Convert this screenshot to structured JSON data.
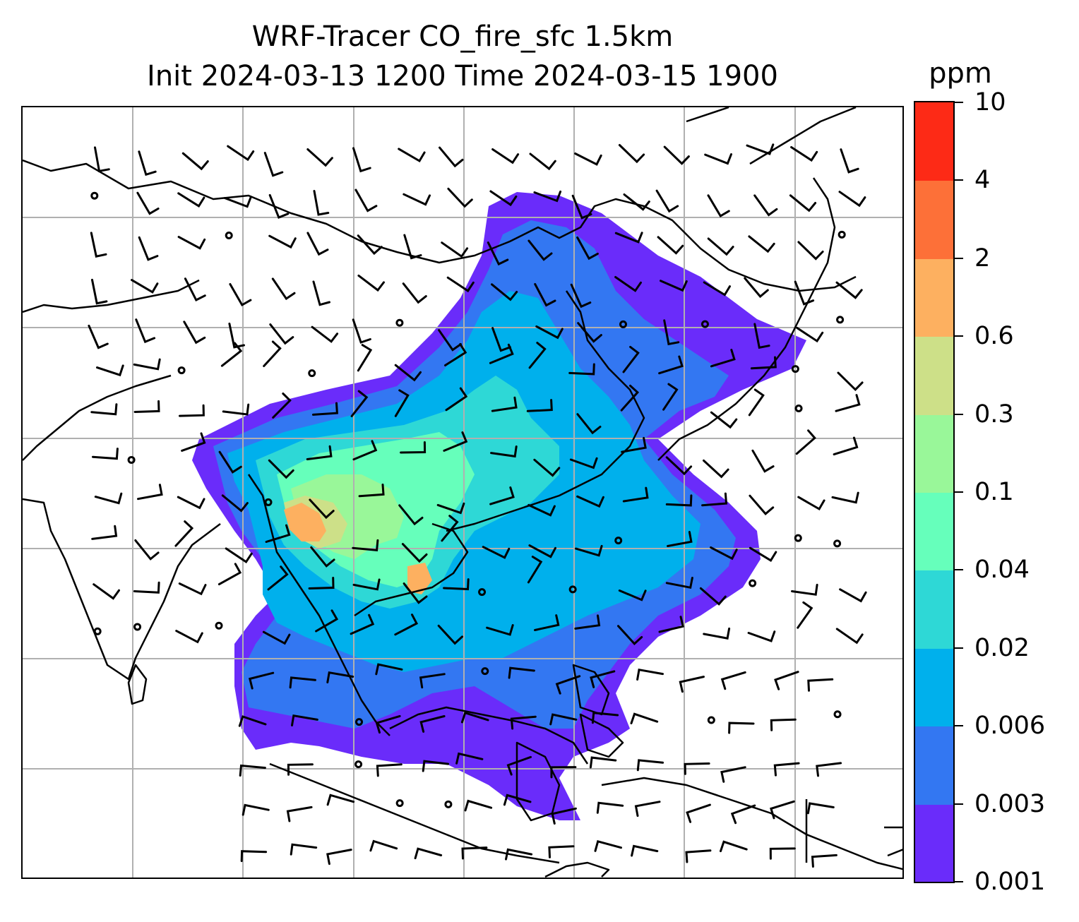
{
  "title": {
    "line1": "WRF-Tracer CO_fire_sfc 1.5km",
    "line2": "Init 2024-03-13 1200 Time 2024-03-15 1900"
  },
  "colorbar": {
    "unit": "ppm",
    "levels": [
      "0.001",
      "0.003",
      "0.006",
      "0.02",
      "0.04",
      "0.1",
      "0.3",
      "0.6",
      "2",
      "4",
      "10"
    ],
    "colors": [
      "#6a2cfa",
      "#3377f2",
      "#00b0ec",
      "#2ed8d6",
      "#66ffbb",
      "#99f799",
      "#cde088",
      "#fdb060",
      "#fd7038",
      "#fd2a16"
    ]
  },
  "map": {
    "gridlines": "on",
    "coastline_color": "#000000",
    "wind_barb_color": "#000000",
    "gridline_color": "#b0b0b0"
  }
}
